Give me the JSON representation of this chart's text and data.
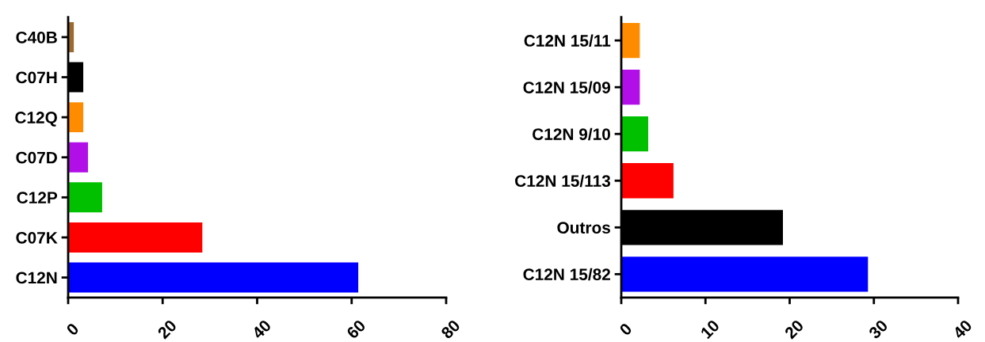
{
  "chart_data": [
    {
      "type": "bar",
      "orientation": "horizontal",
      "categories": [
        "C40B",
        "C07H",
        "C12Q",
        "C07D",
        "C12P",
        "C07K",
        "C12N"
      ],
      "values": [
        1.2,
        3.2,
        3.2,
        4.2,
        7.2,
        28.4,
        61.4
      ],
      "colors": [
        "#9c6a2e",
        "#000000",
        "#ff8c00",
        "#b20fe8",
        "#00c000",
        "#ff0000",
        "#0000ff"
      ],
      "xlim": [
        0,
        80
      ],
      "xticks": [
        0,
        20,
        40,
        60,
        80
      ],
      "grid": false
    },
    {
      "type": "bar",
      "orientation": "horizontal",
      "categories": [
        "C12N 15/11",
        "C12N 15/09",
        "C12N 9/10",
        "C12N 15/113",
        "Outros",
        "C12N 15/82"
      ],
      "values": [
        2.2,
        2.2,
        3.2,
        6.2,
        19.2,
        29.3
      ],
      "colors": [
        "#ff8c00",
        "#b20fe8",
        "#00c000",
        "#ff0000",
        "#000000",
        "#0000ff"
      ],
      "xlim": [
        0,
        40
      ],
      "xticks": [
        0,
        10,
        20,
        30,
        40
      ],
      "grid": false
    }
  ]
}
